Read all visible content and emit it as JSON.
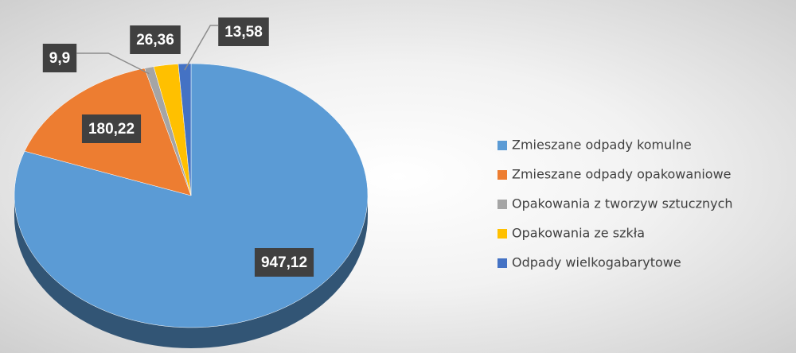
{
  "chart_data": {
    "type": "pie",
    "categories": [
      "Zmieszane odpady komulne",
      "Zmieszane odpady opakowaniowe",
      "Opakowania z tworzyw sztucznych",
      "Opakowania ze szkła",
      "Odpady wielkogabarytowe"
    ],
    "values": [
      947.12,
      180.22,
      9.9,
      26.36,
      13.58
    ],
    "value_labels": [
      "947,12",
      "180,22",
      "9,9",
      "26,36",
      "13,58"
    ],
    "colors": [
      "#5b9bd5",
      "#ed7d31",
      "#a5a5a5",
      "#ffc000",
      "#4472c4"
    ],
    "legend": "right"
  }
}
